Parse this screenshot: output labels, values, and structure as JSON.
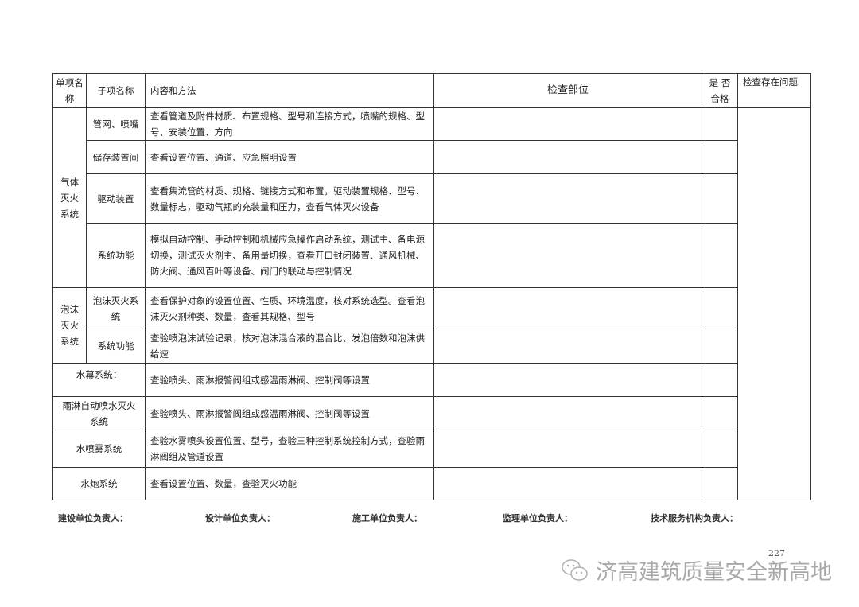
{
  "header": {
    "unit": "单项名称",
    "sub": "子项名称",
    "method": "内容和方法",
    "location": "检查部位",
    "pass": "是 否 合格",
    "issues": "检查存在问题"
  },
  "groups": [
    {
      "name": "气体灭火系统",
      "items": [
        {
          "sub": "管网、喷嘴",
          "method": "查看管道及附件材质、布置规格、型号和连接方式，喷嘴的规格、型号、安装位置、方向"
        },
        {
          "sub": "储存装置间",
          "method": "查看设置位置、通道、应急照明设置"
        },
        {
          "sub": "驱动装置",
          "method": "查看集流管的材质、规格、链接方式和布置，驱动装置规格、型号、数量标志，驱动气瓶的充装量和压力，查看气体灭火设备"
        },
        {
          "sub": "系统功能",
          "method": "模拟自动控制、手动控制和机械应急操作启动系统，测试主、备电源切换，测试灭火剂主、备用量切换，查看开口封闭装置、通风机械、防火阀、通风百叶等设备、阀门的联动与控制情况"
        }
      ]
    },
    {
      "name": "泡沫灭火系统",
      "items": [
        {
          "sub": "泡沫灭火系统",
          "method": "查看保护对象的设置位置、性质、环境温度，核对系统选型。查看泡沫灭火剂种类、数量，查看其规格、型号"
        },
        {
          "sub": "系统功能",
          "method": "查验喷泡沫试验记录，核对泡沫混合液的混合比、发泡倍数和泡沫供给速"
        }
      ]
    }
  ],
  "singles": [
    {
      "name": "水幕系统：",
      "method": "查验喷头、雨淋报警阀组或感温雨淋阀、控制阀等设置"
    },
    {
      "name": "雨淋自动喷水灭火系统",
      "method": "查验喷头、雨淋报警阀组或感温雨淋阀、控制阀等设置"
    },
    {
      "name": "水喷雾系统",
      "method": "查验水雾喷头设置位置、型号，查验三种控制系统控制方式，查验雨淋阀组及管道设置"
    },
    {
      "name": "水炮系统",
      "method": "查看设置位置、数量，查验灭火功能"
    }
  ],
  "signatures": [
    "建设单位负责人：",
    "设计单位负责人：",
    "施工单位负责人：",
    "监理单位负责人：",
    "技术服务机构负责人："
  ],
  "page_number": "227",
  "watermark": "济高建筑质量安全新高地"
}
